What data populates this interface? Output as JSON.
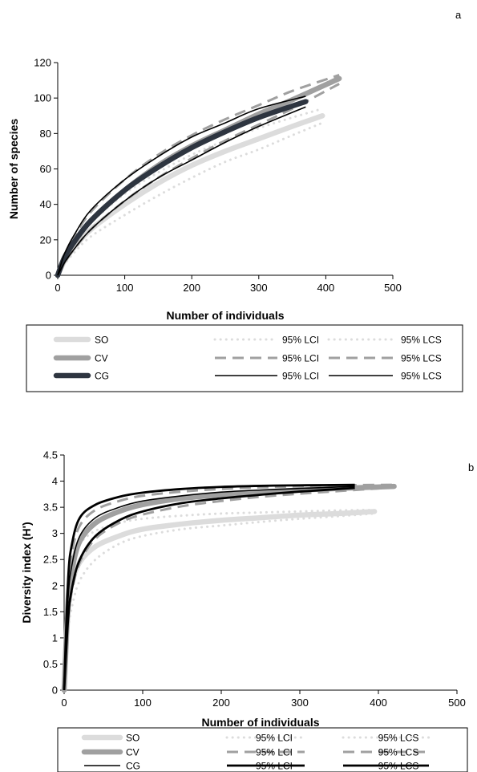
{
  "chart_data": [
    {
      "type": "line",
      "panel_label": "a",
      "xlabel": "Number of individuals",
      "ylabel": "Number of species",
      "xlim": [
        0,
        500
      ],
      "ylim": [
        0,
        120
      ],
      "x_ticks": [
        "0",
        "100",
        "200",
        "300",
        "400",
        "500"
      ],
      "y_ticks": [
        "0",
        "20",
        "40",
        "60",
        "80",
        "100",
        "120"
      ],
      "grid": false,
      "legend_position": "bottom",
      "series": [
        {
          "name": "SO",
          "style": "thick",
          "color": "#dcdcdc",
          "x": [
            0,
            10,
            25,
            50,
            100,
            150,
            200,
            250,
            300,
            350,
            395
          ],
          "y": [
            0,
            8,
            16,
            26,
            40,
            52,
            62,
            70,
            77,
            84,
            90
          ]
        },
        {
          "name": "95% LCI",
          "group": "SO",
          "style": "dotted",
          "color": "#dcdcdc",
          "x": [
            0,
            10,
            25,
            50,
            100,
            150,
            200,
            250,
            300,
            350,
            395
          ],
          "y": [
            0,
            6,
            13,
            22,
            34,
            45,
            55,
            64,
            71,
            79,
            86
          ]
        },
        {
          "name": "95% LCS",
          "group": "SO",
          "style": "dotted",
          "color": "#dcdcdc",
          "x": [
            0,
            10,
            25,
            50,
            100,
            150,
            200,
            250,
            300,
            350,
            395
          ],
          "y": [
            0,
            10,
            20,
            30,
            46,
            58,
            68,
            76,
            83,
            89,
            94
          ]
        },
        {
          "name": "CV",
          "style": "thick",
          "color": "#a0a0a0",
          "x": [
            0,
            10,
            25,
            50,
            100,
            150,
            200,
            250,
            300,
            350,
            420
          ],
          "y": [
            0,
            9,
            19,
            31,
            48,
            62,
            73,
            82,
            91,
            99,
            111
          ]
        },
        {
          "name": "95% LCI",
          "group": "CV",
          "style": "dashed",
          "color": "#a0a0a0",
          "x": [
            0,
            10,
            25,
            50,
            100,
            150,
            200,
            250,
            300,
            350,
            420
          ],
          "y": [
            0,
            7,
            15,
            26,
            42,
            55,
            66,
            76,
            85,
            94,
            108
          ]
        },
        {
          "name": "95% LCS",
          "group": "CV",
          "style": "dashed",
          "color": "#a0a0a0",
          "x": [
            0,
            10,
            25,
            50,
            100,
            150,
            200,
            250,
            300,
            350,
            420
          ],
          "y": [
            0,
            11,
            22,
            36,
            54,
            68,
            79,
            88,
            96,
            104,
            113
          ]
        },
        {
          "name": "CG",
          "style": "thick",
          "color": "#2e3540",
          "x": [
            0,
            10,
            25,
            50,
            100,
            150,
            200,
            250,
            300,
            370
          ],
          "y": [
            0,
            10,
            19,
            31,
            48,
            61,
            72,
            81,
            89,
            98
          ]
        },
        {
          "name": "95% LCI",
          "group": "CG",
          "style": "thin",
          "color": "#000000",
          "x": [
            0,
            10,
            25,
            50,
            100,
            150,
            200,
            250,
            300,
            370
          ],
          "y": [
            0,
            7,
            15,
            26,
            42,
            55,
            65,
            75,
            84,
            95
          ]
        },
        {
          "name": "95% LCS",
          "group": "CG",
          "style": "thin",
          "color": "#000000",
          "x": [
            0,
            10,
            25,
            50,
            100,
            150,
            200,
            250,
            300,
            370
          ],
          "y": [
            0,
            12,
            23,
            37,
            54,
            67,
            78,
            86,
            94,
            101
          ]
        }
      ],
      "legend": [
        [
          "SO",
          "95% LCI",
          "95% LCS"
        ],
        [
          "CV",
          "95% LCI",
          "95% LCS"
        ],
        [
          "CG",
          "95% LCI",
          "95% LCS"
        ]
      ]
    },
    {
      "type": "line",
      "panel_label": "b",
      "xlabel": "Number of individuals",
      "ylabel": "Diversity index (H')",
      "xlim": [
        0,
        500
      ],
      "ylim": [
        0,
        4.5
      ],
      "x_ticks": [
        "0",
        "100",
        "200",
        "300",
        "400",
        "500"
      ],
      "y_ticks": [
        "0",
        "0.5",
        "1",
        "1.5",
        "2",
        "2.5",
        "3",
        "3.5",
        "4",
        "4.5"
      ],
      "grid": false,
      "legend_position": "bottom",
      "series": [
        {
          "name": "SO",
          "style": "thick",
          "color": "#dcdcdc",
          "x": [
            0,
            5,
            10,
            20,
            40,
            70,
            100,
            150,
            200,
            250,
            300,
            350,
            395
          ],
          "y": [
            0,
            1.5,
            2.05,
            2.45,
            2.75,
            2.95,
            3.08,
            3.18,
            3.25,
            3.3,
            3.35,
            3.38,
            3.42
          ]
        },
        {
          "name": "95% LCI",
          "group": "SO",
          "style": "dotted",
          "color": "#dcdcdc",
          "x": [
            0,
            5,
            10,
            20,
            40,
            70,
            100,
            150,
            200,
            250,
            300,
            350,
            395
          ],
          "y": [
            0,
            1.1,
            1.6,
            2.1,
            2.5,
            2.8,
            2.95,
            3.08,
            3.15,
            3.22,
            3.28,
            3.33,
            3.38
          ]
        },
        {
          "name": "95% LCS",
          "group": "SO",
          "style": "dotted",
          "color": "#dcdcdc",
          "x": [
            0,
            5,
            10,
            20,
            40,
            70,
            100,
            150,
            200,
            250,
            300,
            350,
            395
          ],
          "y": [
            0,
            1.8,
            2.4,
            2.8,
            3.05,
            3.2,
            3.28,
            3.34,
            3.38,
            3.4,
            3.42,
            3.44,
            3.45
          ]
        },
        {
          "name": "CV",
          "style": "thick",
          "color": "#a0a0a0",
          "x": [
            0,
            5,
            10,
            20,
            40,
            70,
            100,
            150,
            200,
            250,
            300,
            350,
            420
          ],
          "y": [
            0,
            1.7,
            2.3,
            2.85,
            3.2,
            3.42,
            3.55,
            3.67,
            3.74,
            3.79,
            3.83,
            3.86,
            3.9
          ]
        },
        {
          "name": "95% LCI",
          "group": "CV",
          "style": "dashed",
          "color": "#a0a0a0",
          "x": [
            0,
            5,
            10,
            20,
            40,
            70,
            100,
            150,
            200,
            250,
            300,
            350,
            420
          ],
          "y": [
            0,
            1.3,
            1.9,
            2.45,
            2.9,
            3.2,
            3.36,
            3.52,
            3.62,
            3.7,
            3.76,
            3.81,
            3.88
          ]
        },
        {
          "name": "95% LCS",
          "group": "CV",
          "style": "dashed",
          "color": "#a0a0a0",
          "x": [
            0,
            5,
            10,
            20,
            40,
            70,
            100,
            150,
            200,
            250,
            300,
            350,
            420
          ],
          "y": [
            0,
            2.0,
            2.65,
            3.15,
            3.45,
            3.62,
            3.72,
            3.8,
            3.85,
            3.88,
            3.9,
            3.92,
            3.93
          ]
        },
        {
          "name": "CG",
          "style": "thin",
          "color": "#000000",
          "x": [
            0,
            5,
            10,
            20,
            40,
            70,
            100,
            150,
            200,
            250,
            300,
            370
          ],
          "y": [
            0,
            1.75,
            2.4,
            2.95,
            3.3,
            3.5,
            3.62,
            3.72,
            3.79,
            3.83,
            3.86,
            3.9
          ]
        },
        {
          "name": "95% LCI",
          "group": "CG",
          "style": "thick-black",
          "color": "#000000",
          "x": [
            0,
            5,
            10,
            20,
            40,
            70,
            100,
            150,
            200,
            250,
            300,
            370
          ],
          "y": [
            0,
            1.35,
            1.95,
            2.5,
            2.95,
            3.25,
            3.42,
            3.58,
            3.67,
            3.74,
            3.8,
            3.87
          ]
        },
        {
          "name": "95% LCS",
          "group": "CG",
          "style": "thick-black",
          "color": "#000000",
          "x": [
            0,
            5,
            10,
            20,
            40,
            70,
            100,
            150,
            200,
            250,
            300,
            370
          ],
          "y": [
            0,
            2.1,
            2.8,
            3.3,
            3.55,
            3.7,
            3.78,
            3.85,
            3.89,
            3.91,
            3.92,
            3.93
          ]
        }
      ],
      "legend": [
        [
          "SO",
          "95% LCI",
          "95% LCS"
        ],
        [
          "CV",
          "95% LCI",
          "95% LCS"
        ],
        [
          "CG",
          "95% LCI",
          "95% LCS"
        ]
      ]
    }
  ]
}
